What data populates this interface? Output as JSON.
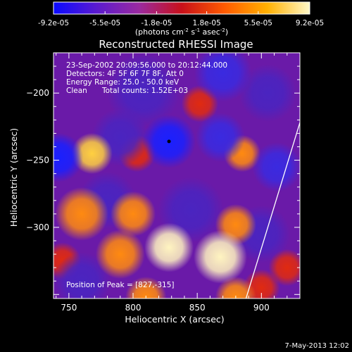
{
  "colorbar": {
    "tick_labels": [
      "-9.2e-05",
      "-5.5e-05",
      "-1.8e-05",
      "1.8e-05",
      "5.5e-05",
      "9.2e-05"
    ],
    "unit_label": "(photons cm",
    "unit_sup1": "-2",
    "unit_mid": " s",
    "unit_sup2": "-1",
    "unit_mid2": " asec",
    "unit_sup3": "-2",
    "unit_end": ")",
    "colors": [
      "#0a0aff",
      "#5a1ad0",
      "#9a2aa0",
      "#c8101a",
      "#ff5a00",
      "#ffb000",
      "#fff8c8"
    ]
  },
  "info": {
    "line1": "23-Sep-2002 20:09:56.000 to 20:12:44.000",
    "line2": "Detectors: 4F 5F 6F 7F 8F, Att 0",
    "line3": "Energy Range: 25.0 - 50.0 keV",
    "line4_a": "Clean",
    "line4_b": "Total counts: 1.52E+03"
  },
  "peak_text": "Position of Peak = [827,-315]",
  "footer_date": "7-May-2013 12:02",
  "chart_data": {
    "type": "heatmap",
    "title": "Reconstructed RHESSI Image",
    "xlabel": "Heliocentric X (arcsec)",
    "ylabel": "Heliocentric Y (arcsec)",
    "xlim": [
      738,
      930
    ],
    "ylim": [
      -353,
      -170
    ],
    "x_ticks": [
      750,
      800,
      850,
      900
    ],
    "y_ticks": [
      -200,
      -250,
      -300
    ],
    "x_tick_labels": [
      "750",
      "800",
      "850",
      "900"
    ],
    "y_tick_labels": [
      "−200",
      "−250",
      "−300"
    ],
    "value_range": [
      -9.2e-05,
      9.2e-05
    ],
    "peak_position": [
      827,
      -315
    ],
    "marker": [
      828,
      -236
    ],
    "limb_line": [
      [
        930,
        -222
      ],
      [
        888,
        -353
      ]
    ],
    "blobs": [
      {
        "x": 742,
        "y": -248,
        "v": -0.9,
        "s": 12
      },
      {
        "x": 790,
        "y": -233,
        "v": -0.55,
        "s": 14
      },
      {
        "x": 828,
        "y": -236,
        "v": -0.95,
        "s": 13
      },
      {
        "x": 868,
        "y": -233,
        "v": -0.8,
        "s": 12
      },
      {
        "x": 808,
        "y": -198,
        "v": -0.45,
        "s": 18
      },
      {
        "x": 870,
        "y": -185,
        "v": -0.6,
        "s": 14
      },
      {
        "x": 905,
        "y": -200,
        "v": -0.5,
        "s": 14
      },
      {
        "x": 912,
        "y": -255,
        "v": -0.8,
        "s": 12
      },
      {
        "x": 845,
        "y": -287,
        "v": -0.5,
        "s": 16
      },
      {
        "x": 900,
        "y": -305,
        "v": -0.55,
        "s": 14
      },
      {
        "x": 760,
        "y": -340,
        "v": -0.5,
        "s": 14
      },
      {
        "x": 780,
        "y": -280,
        "v": -0.3,
        "s": 14
      },
      {
        "x": 768,
        "y": -245,
        "v": 0.75,
        "s": 10
      },
      {
        "x": 803,
        "y": -245,
        "v": 0.45,
        "s": 9
      },
      {
        "x": 852,
        "y": -208,
        "v": 0.35,
        "s": 9
      },
      {
        "x": 885,
        "y": -245,
        "v": 0.55,
        "s": 9
      },
      {
        "x": 760,
        "y": -290,
        "v": 0.55,
        "s": 13
      },
      {
        "x": 800,
        "y": -290,
        "v": 0.55,
        "s": 11
      },
      {
        "x": 790,
        "y": -320,
        "v": 0.65,
        "s": 12
      },
      {
        "x": 828,
        "y": -315,
        "v": 1.0,
        "s": 12
      },
      {
        "x": 868,
        "y": -322,
        "v": 0.95,
        "s": 13
      },
      {
        "x": 880,
        "y": -298,
        "v": 0.6,
        "s": 10
      },
      {
        "x": 880,
        "y": -352,
        "v": 0.65,
        "s": 10
      },
      {
        "x": 810,
        "y": -352,
        "v": 0.5,
        "s": 10
      },
      {
        "x": 745,
        "y": -325,
        "v": 0.4,
        "s": 9
      },
      {
        "x": 900,
        "y": -345,
        "v": 0.35,
        "s": 9
      },
      {
        "x": 920,
        "y": -330,
        "v": 0.45,
        "s": 9
      }
    ]
  }
}
